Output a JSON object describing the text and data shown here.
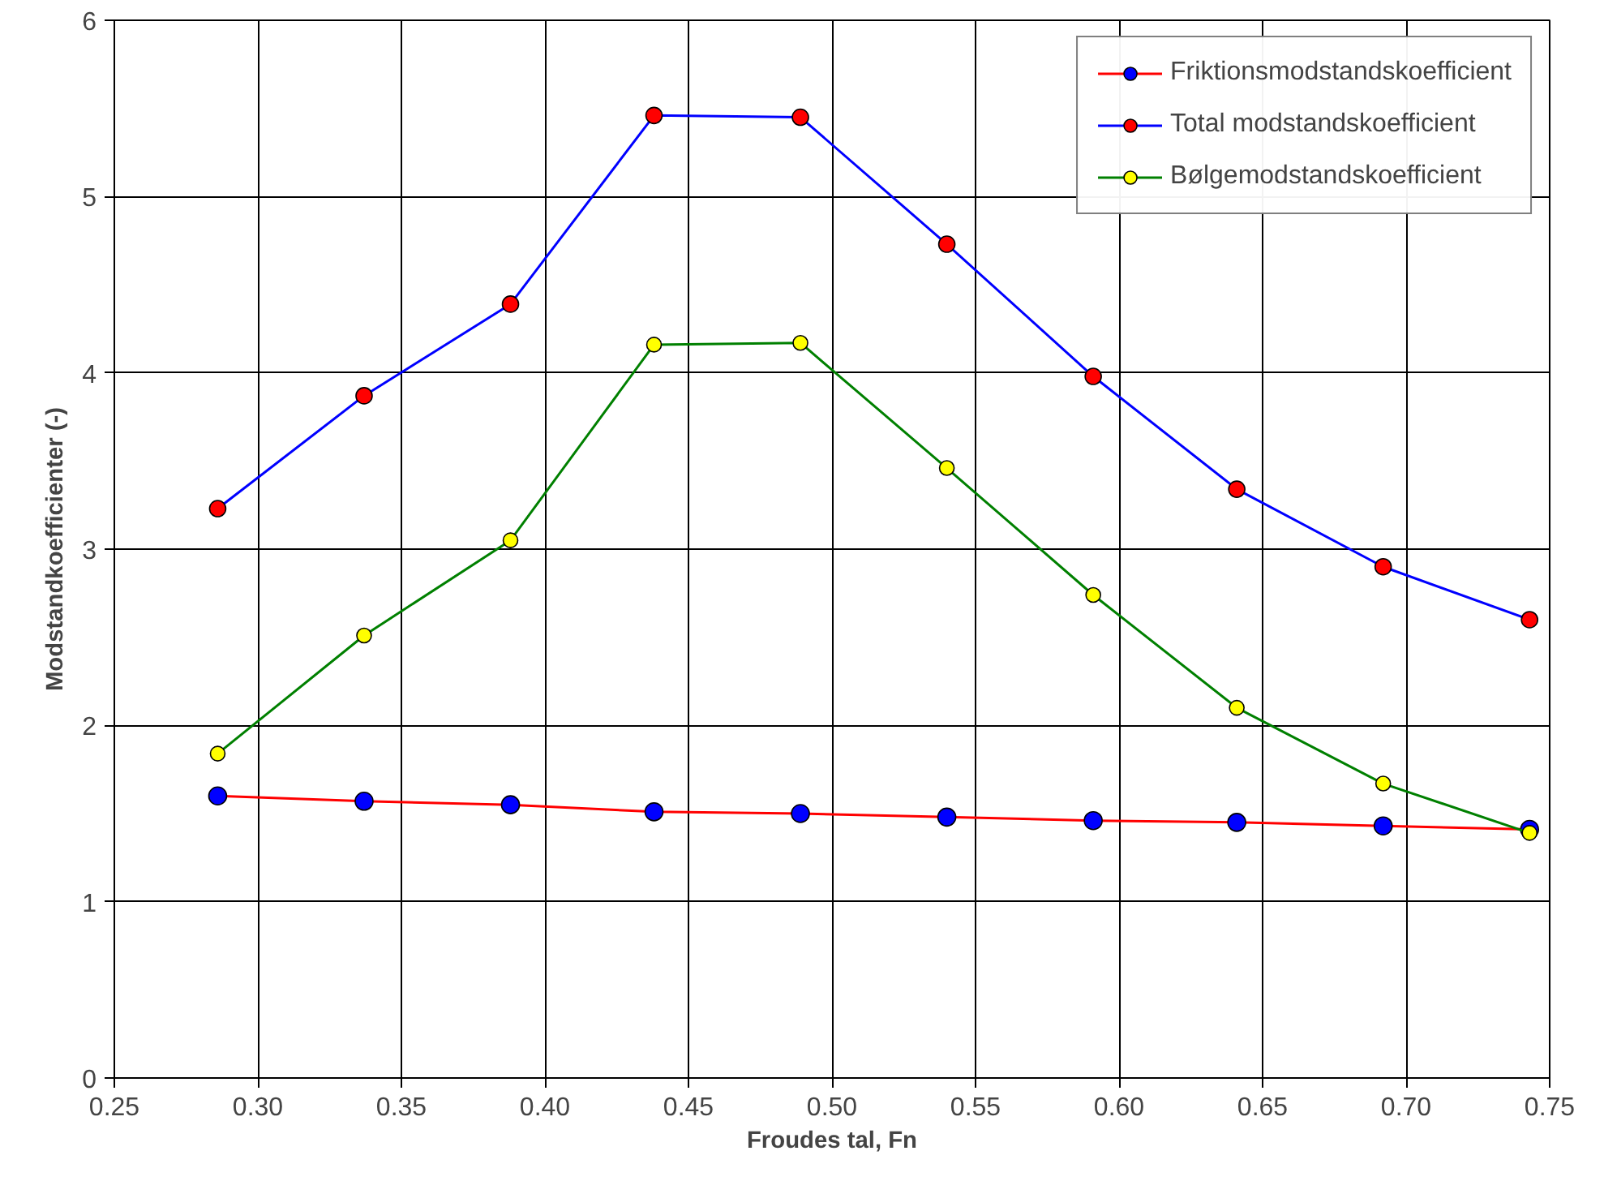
{
  "chart_data": {
    "type": "line",
    "xlabel": "Froudes tal, Fn",
    "ylabel": "Modstandkoefficienter (-)",
    "x": [
      0.286,
      0.337,
      0.388,
      0.438,
      0.489,
      0.54,
      0.591,
      0.641,
      0.692,
      0.743
    ],
    "series": [
      {
        "name": "Friktionsmodstandskoefficient",
        "color": "#ff0000",
        "colors": [
          "#0000ff",
          "#0000ff",
          "#0000ff",
          "#0000ff",
          "#0000ff",
          "#0000ff",
          "#0000ff",
          "#0000ff",
          "#0000ff",
          "#0000ff"
        ],
        "values": [
          1.6,
          1.57,
          1.55,
          1.51,
          1.5,
          1.48,
          1.46,
          1.45,
          1.43,
          1.41
        ]
      },
      {
        "name": "Total modstandskoefficient",
        "color": "#0000ff",
        "colors": [
          "#ff0000",
          "#ff0000",
          "#ff0000",
          "#ff0000",
          "#ff0000",
          "#ff0000",
          "#ff0000",
          "#ff0000",
          "#ff0000",
          "#ff0000"
        ],
        "values": [
          3.23,
          3.87,
          4.39,
          5.46,
          5.45,
          4.73,
          3.98,
          3.34,
          2.9,
          2.6
        ]
      },
      {
        "name": "Bølgemodstandskoefficient",
        "color": "#008000",
        "colors": [
          "#ffff00",
          "#ffff00",
          "#ffff00",
          "#ffff00",
          "#ffff00",
          "#ffff00",
          "#ffff00",
          "#ffff00",
          "#ffff00",
          "#ffff00"
        ],
        "values": [
          1.84,
          2.51,
          3.05,
          4.16,
          4.17,
          3.46,
          2.74,
          2.1,
          1.67,
          1.39
        ]
      }
    ],
    "xlim": [
      0.25,
      0.75
    ],
    "xticks": [
      {
        "value": 0.25,
        "label": "0.25"
      },
      {
        "value": 0.3,
        "label": "0.30"
      },
      {
        "value": 0.35,
        "label": "0.35"
      },
      {
        "value": 0.4,
        "label": "0.40"
      },
      {
        "value": 0.45,
        "label": "0.45"
      },
      {
        "value": 0.5,
        "label": "0.50"
      },
      {
        "value": 0.55,
        "label": "0.55"
      },
      {
        "value": 0.6,
        "label": "0.60"
      },
      {
        "value": 0.65,
        "label": "0.65"
      },
      {
        "value": 0.7,
        "label": "0.70"
      },
      {
        "value": 0.75,
        "label": "0.75"
      }
    ],
    "ylim": [
      0,
      6
    ],
    "yticks": [
      0,
      1,
      2,
      3,
      4,
      5,
      6
    ],
    "grid": true,
    "legend": "top right",
    "marker": "circle",
    "line_style": "solid"
  }
}
